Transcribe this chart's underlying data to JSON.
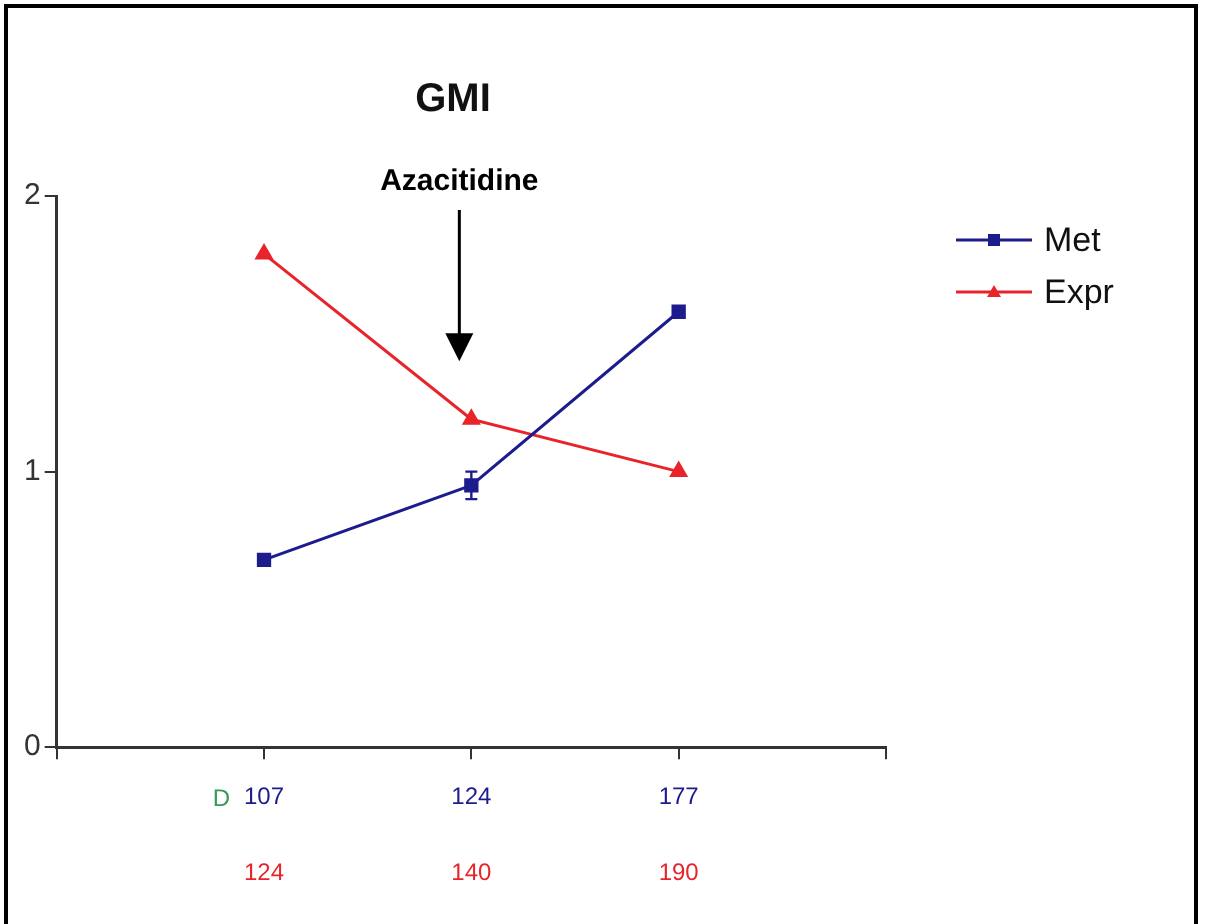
{
  "chart_data": {
    "type": "line",
    "title": "GMI",
    "categories": [
      null,
      "107",
      "124",
      "177",
      null
    ],
    "ylim": [
      0,
      2
    ],
    "yticks": [
      0,
      1,
      2
    ],
    "series": [
      {
        "name": "Met",
        "color": "#1c1c8c",
        "values": [
          null,
          0.68,
          0.95,
          1.58,
          null
        ],
        "errors": [
          null,
          null,
          0.05,
          null,
          null
        ],
        "marker": "square"
      },
      {
        "name": "Expr",
        "color": "#e8242a",
        "values": [
          null,
          1.79,
          1.19,
          1.0,
          null
        ],
        "marker": "triangle"
      }
    ],
    "annotations": [
      "Azacitidine",
      "D",
      "124",
      "140",
      "190"
    ],
    "grid": false,
    "legend": "top right",
    "line_style": "solid"
  }
}
